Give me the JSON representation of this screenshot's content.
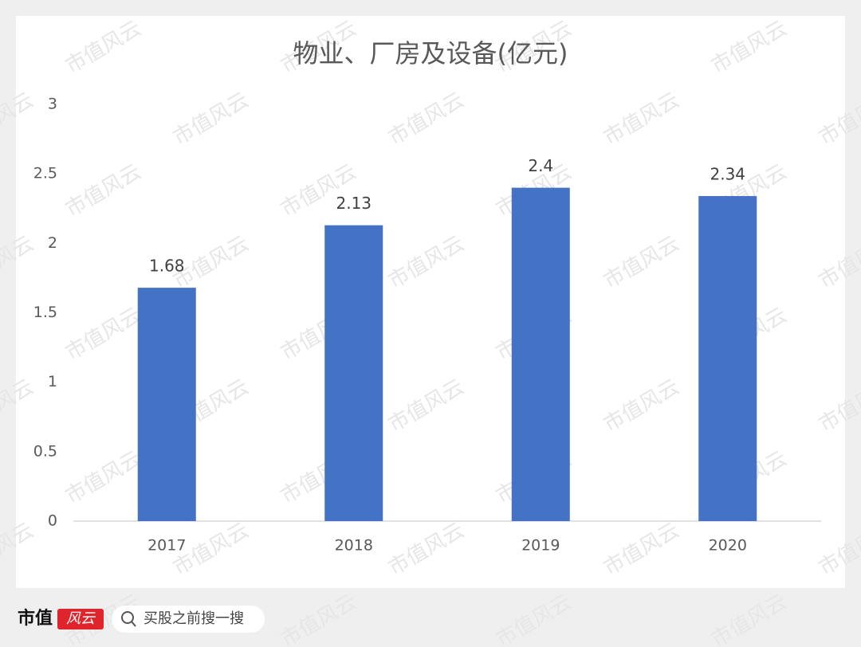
{
  "chart_data": {
    "type": "bar",
    "title": "物业、厂房及设备(亿元)",
    "categories": [
      "2017",
      "2018",
      "2019",
      "2020"
    ],
    "values": [
      1.68,
      2.13,
      2.4,
      2.34
    ],
    "color": "#4472c4",
    "ylim": [
      0,
      3
    ],
    "yticks": [
      0,
      0.5,
      1,
      1.5,
      2,
      2.5,
      3
    ],
    "grid": false
  },
  "watermark": "市值风云",
  "footer": {
    "brand": "市值",
    "logo": "风云",
    "search": "买股之前搜一搜"
  }
}
